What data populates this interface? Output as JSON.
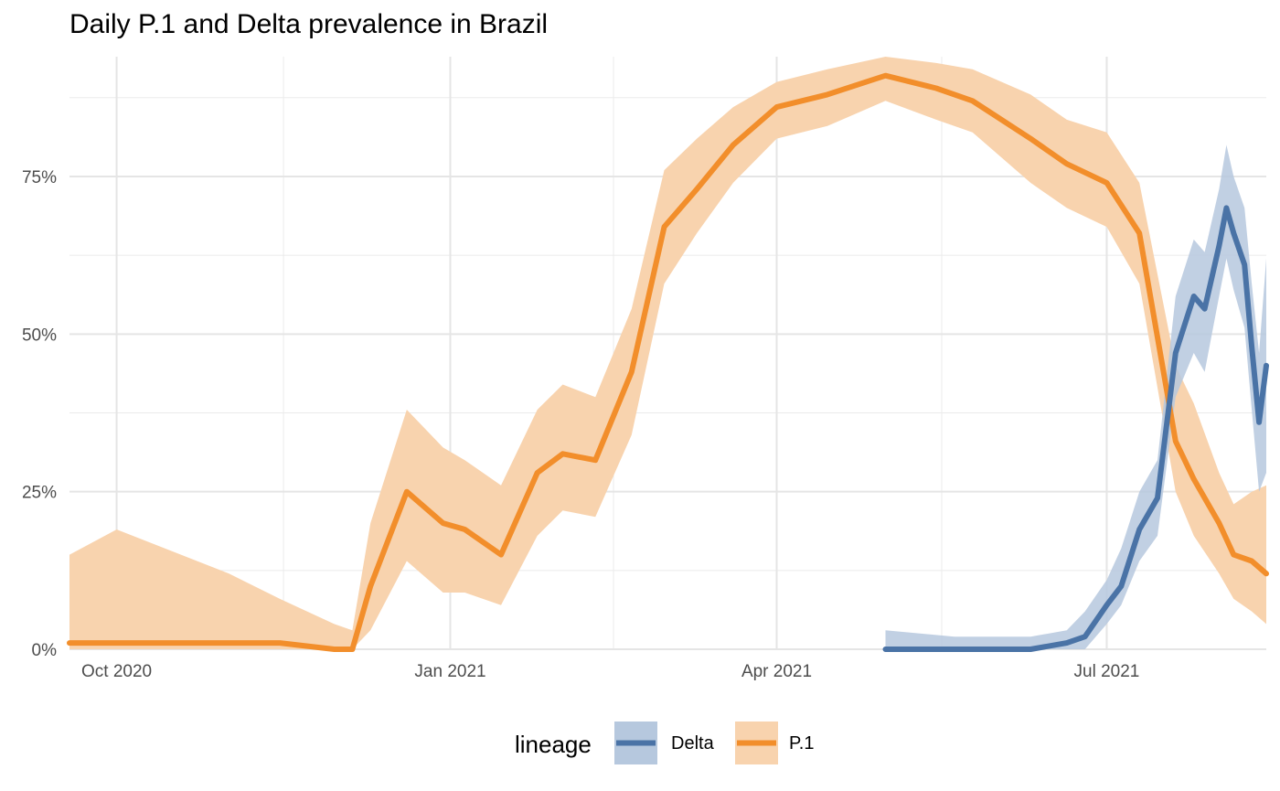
{
  "chart_data": {
    "type": "line",
    "title": "Daily P.1 and Delta prevalence in Brazil",
    "xlabel": "",
    "ylabel": "",
    "x_ticks": [
      "Oct 2020",
      "Jan 2021",
      "Apr 2021",
      "Jul 2021"
    ],
    "y_ticks": [
      "0%",
      "25%",
      "50%",
      "75%"
    ],
    "ylim": [
      0,
      0.94
    ],
    "xlim": [
      "2020-09-18",
      "2021-08-14"
    ],
    "grid": true,
    "legend": {
      "title": "lineage",
      "position": "bottom",
      "entries": [
        "Delta",
        "P.1"
      ]
    },
    "colors": {
      "Delta": "#4a73a6",
      "P.1": "#f28e2b"
    },
    "ribbon_colors": {
      "Delta": "#b6c8de",
      "P.1": "#f8d3ae"
    },
    "series": [
      {
        "name": "P.1",
        "x": [
          "2020-09-18",
          "2020-10-01",
          "2020-11-01",
          "2020-11-15",
          "2020-11-30",
          "2020-12-05",
          "2020-12-10",
          "2020-12-20",
          "2020-12-30",
          "2021-01-05",
          "2021-01-15",
          "2021-01-25",
          "2021-02-01",
          "2021-02-10",
          "2021-02-20",
          "2021-03-01",
          "2021-03-10",
          "2021-03-20",
          "2021-04-01",
          "2021-04-15",
          "2021-05-01",
          "2021-05-15",
          "2021-05-25",
          "2021-06-10",
          "2021-06-20",
          "2021-07-01",
          "2021-07-10",
          "2021-07-20",
          "2021-07-25",
          "2021-08-01",
          "2021-08-05",
          "2021-08-10",
          "2021-08-14"
        ],
        "values": [
          0.01,
          0.01,
          0.01,
          0.01,
          0.0,
          0.0,
          0.1,
          0.25,
          0.2,
          0.19,
          0.15,
          0.28,
          0.31,
          0.3,
          0.44,
          0.67,
          0.73,
          0.8,
          0.86,
          0.88,
          0.91,
          0.89,
          0.87,
          0.81,
          0.77,
          0.74,
          0.66,
          0.33,
          0.27,
          0.2,
          0.15,
          0.14,
          0.12
        ],
        "lower": [
          0.0,
          0.0,
          0.0,
          0.0,
          0.0,
          0.0,
          0.03,
          0.14,
          0.09,
          0.09,
          0.07,
          0.18,
          0.22,
          0.21,
          0.34,
          0.58,
          0.66,
          0.74,
          0.81,
          0.83,
          0.87,
          0.84,
          0.82,
          0.74,
          0.7,
          0.67,
          0.58,
          0.25,
          0.18,
          0.12,
          0.08,
          0.06,
          0.04
        ],
        "upper": [
          0.15,
          0.19,
          0.12,
          0.08,
          0.04,
          0.03,
          0.2,
          0.38,
          0.32,
          0.3,
          0.26,
          0.38,
          0.42,
          0.4,
          0.54,
          0.76,
          0.81,
          0.86,
          0.9,
          0.92,
          0.94,
          0.93,
          0.92,
          0.88,
          0.84,
          0.82,
          0.74,
          0.45,
          0.39,
          0.28,
          0.23,
          0.25,
          0.26
        ]
      },
      {
        "name": "Delta",
        "x": [
          "2021-05-01",
          "2021-05-20",
          "2021-06-10",
          "2021-06-20",
          "2021-06-25",
          "2021-07-01",
          "2021-07-05",
          "2021-07-10",
          "2021-07-15",
          "2021-07-20",
          "2021-07-25",
          "2021-07-28",
          "2021-08-01",
          "2021-08-03",
          "2021-08-05",
          "2021-08-08",
          "2021-08-10",
          "2021-08-12",
          "2021-08-14"
        ],
        "values": [
          0.0,
          0.0,
          0.0,
          0.01,
          0.02,
          0.07,
          0.1,
          0.19,
          0.24,
          0.47,
          0.56,
          0.54,
          0.64,
          0.7,
          0.66,
          0.61,
          0.48,
          0.36,
          0.45
        ],
        "lower": [
          0.0,
          0.0,
          0.0,
          0.0,
          0.0,
          0.04,
          0.07,
          0.14,
          0.18,
          0.4,
          0.47,
          0.44,
          0.56,
          0.62,
          0.57,
          0.51,
          0.38,
          0.25,
          0.28
        ],
        "upper": [
          0.03,
          0.02,
          0.02,
          0.03,
          0.06,
          0.11,
          0.16,
          0.25,
          0.3,
          0.56,
          0.65,
          0.63,
          0.73,
          0.8,
          0.75,
          0.7,
          0.58,
          0.47,
          0.62
        ]
      }
    ]
  }
}
